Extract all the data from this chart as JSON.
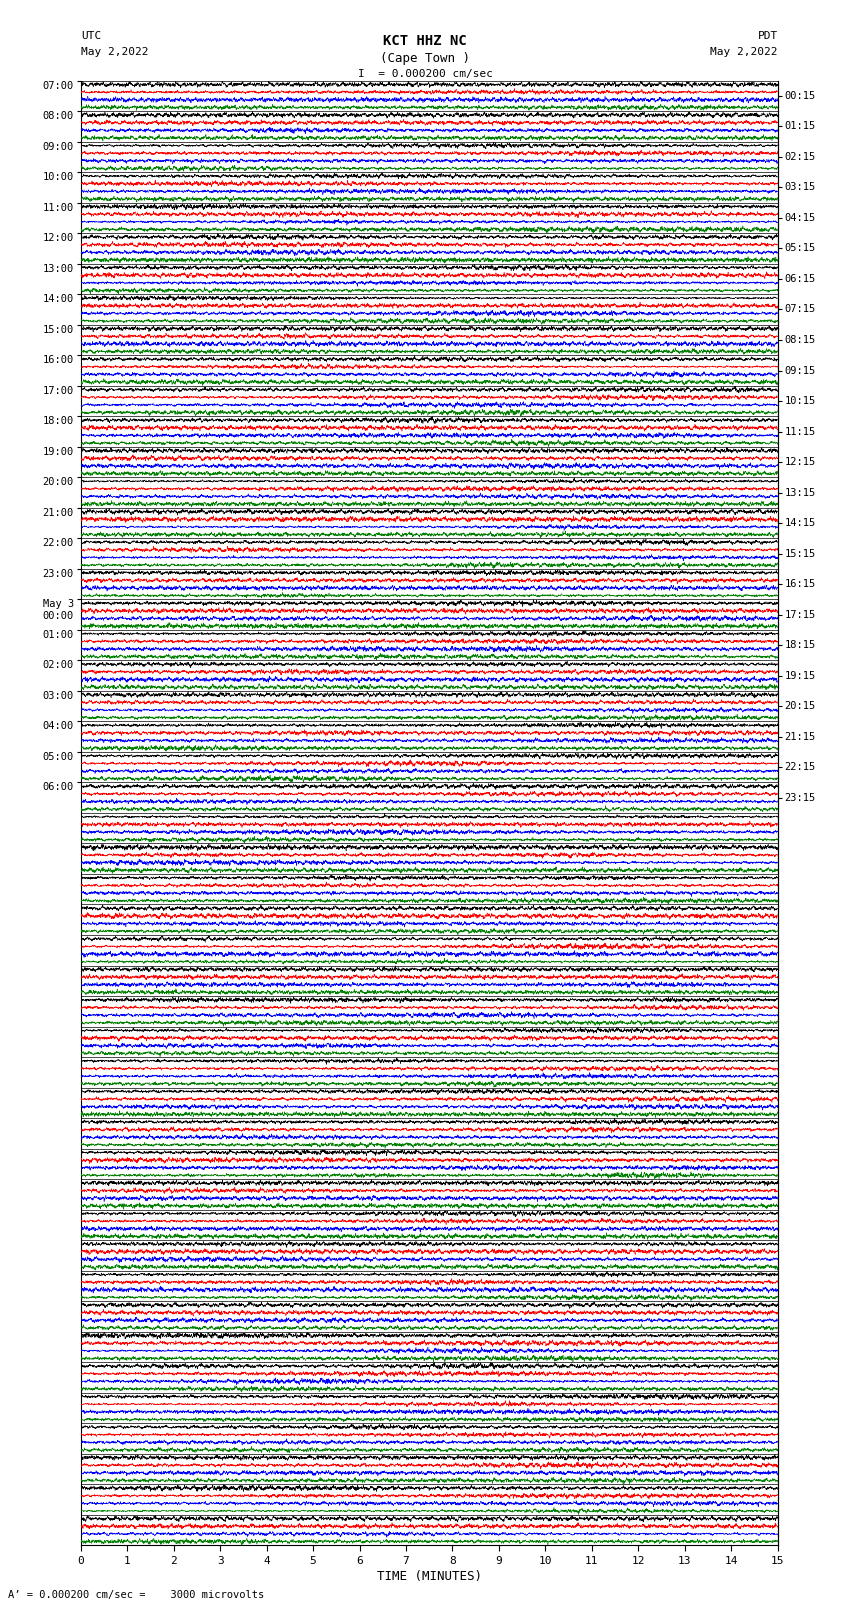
{
  "title_line1": "KCT HHZ NC",
  "title_line2": "(Cape Town )",
  "scale_label": "I  = 0.000200 cm/sec",
  "utc_label": "UTC",
  "utc_date": "May 2,2022",
  "pdt_label": "PDT",
  "pdt_date": "May 2,2022",
  "xlabel": "TIME (MINUTES)",
  "xlim": [
    0,
    15
  ],
  "xticks": [
    0,
    1,
    2,
    3,
    4,
    5,
    6,
    7,
    8,
    9,
    10,
    11,
    12,
    13,
    14,
    15
  ],
  "left_times": [
    "07:00",
    "08:00",
    "09:00",
    "10:00",
    "11:00",
    "12:00",
    "13:00",
    "14:00",
    "15:00",
    "16:00",
    "17:00",
    "18:00",
    "19:00",
    "20:00",
    "21:00",
    "22:00",
    "23:00",
    "May 3\n00:00",
    "01:00",
    "02:00",
    "03:00",
    "04:00",
    "05:00",
    "06:00"
  ],
  "right_times": [
    "00:15",
    "01:15",
    "02:15",
    "03:15",
    "04:15",
    "05:15",
    "06:15",
    "07:15",
    "08:15",
    "09:15",
    "10:15",
    "11:15",
    "12:15",
    "13:15",
    "14:15",
    "15:15",
    "16:15",
    "17:15",
    "18:15",
    "19:15",
    "20:15",
    "21:15",
    "22:15",
    "23:15"
  ],
  "num_rows": 48,
  "colors_per_row": [
    "black",
    "red",
    "blue",
    "green"
  ],
  "bg_color": "white",
  "noise_seed": 42,
  "fig_width": 8.5,
  "fig_height": 16.13,
  "bottom_annotation": "A’ = 0.000200 cm/sec =    3000 microvolts"
}
